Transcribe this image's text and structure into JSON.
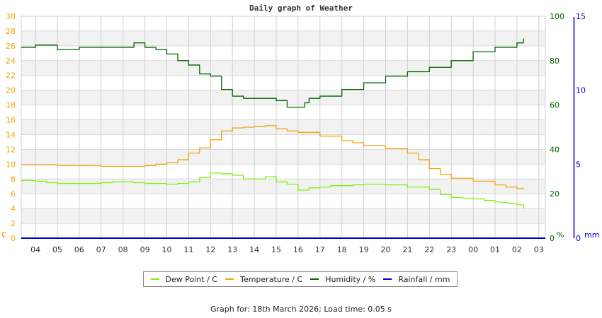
{
  "chart_data": {
    "type": "line",
    "title": "Daily graph of Weather",
    "xlabel": "",
    "x_ticks": [
      "04",
      "05",
      "06",
      "07",
      "08",
      "09",
      "10",
      "11",
      "12",
      "13",
      "14",
      "15",
      "16",
      "17",
      "18",
      "19",
      "20",
      "21",
      "22",
      "23",
      "00",
      "01",
      "02",
      "03"
    ],
    "left_axis": {
      "label": "C",
      "ticks": [
        0,
        2,
        4,
        6,
        8,
        10,
        12,
        14,
        16,
        18,
        20,
        22,
        24,
        26,
        28,
        30
      ],
      "ylim": [
        0,
        30
      ],
      "color": "#f5a30a"
    },
    "right_axis_1": {
      "label": "%",
      "ticks": [
        0,
        20,
        40,
        60,
        80,
        100
      ],
      "ylim": [
        0,
        100
      ],
      "color": "#006400"
    },
    "right_axis_2": {
      "label": "mm",
      "ticks": [
        0,
        5,
        10,
        15
      ],
      "ylim": [
        0,
        15
      ],
      "color": "#0000cc"
    },
    "grid": true,
    "legend_position": "bottom",
    "x_hours_offset_note": "x expressed as hours since 03:00 (first tick 04 = 1)",
    "series": [
      {
        "name": "Dew Point / C",
        "color": "#80ef10",
        "axis": "left",
        "x": [
          0.35,
          1,
          1.5,
          2,
          2.5,
          3,
          4,
          4.5,
          5,
          5.5,
          6,
          7,
          7.5,
          8,
          8.5,
          9,
          9.5,
          10,
          10.5,
          11,
          11.5,
          12,
          12.5,
          13,
          13.5,
          14,
          14.5,
          15,
          15.5,
          16,
          17,
          17.5,
          18,
          19,
          19.5,
          20,
          20.5,
          21,
          21.5,
          22,
          22.3,
          22.6,
          23,
          23.3
        ],
        "values": [
          7.8,
          7.7,
          7.5,
          7.4,
          7.4,
          7.4,
          7.5,
          7.6,
          7.6,
          7.5,
          7.4,
          7.3,
          7.4,
          7.6,
          8.2,
          8.8,
          8.7,
          8.5,
          8.0,
          8.0,
          8.3,
          7.6,
          7.3,
          6.5,
          6.8,
          6.9,
          7.1,
          7.1,
          7.2,
          7.3,
          7.2,
          7.2,
          6.9,
          6.6,
          5.9,
          5.5,
          5.4,
          5.3,
          5.1,
          4.9,
          4.8,
          4.7,
          4.5,
          4.0
        ]
      },
      {
        "name": "Temperature / C",
        "color": "#f5a30a",
        "axis": "left",
        "x": [
          0.35,
          1,
          2,
          3,
          4,
          5,
          5.5,
          6,
          6.5,
          7,
          7.5,
          8,
          8.5,
          9,
          9.5,
          10,
          10.5,
          11,
          11.5,
          12,
          12.5,
          13,
          14,
          15,
          15.5,
          16,
          17,
          18,
          18.5,
          19,
          19.5,
          20,
          21,
          22,
          22.5,
          23,
          23.3
        ],
        "values": [
          9.9,
          9.9,
          9.8,
          9.8,
          9.7,
          9.7,
          9.7,
          9.8,
          10.0,
          10.2,
          10.6,
          11.5,
          12.2,
          13.3,
          14.5,
          14.9,
          15.0,
          15.1,
          15.2,
          14.8,
          14.5,
          14.3,
          13.8,
          13.2,
          12.9,
          12.5,
          12.1,
          11.5,
          10.6,
          9.4,
          8.6,
          8.1,
          7.7,
          7.2,
          6.9,
          6.7,
          6.6
        ]
      },
      {
        "name": "Humidity / %",
        "color": "#006400",
        "axis": "right_1",
        "x": [
          0.35,
          1,
          2,
          3,
          4,
          5,
          5.5,
          6,
          6.5,
          7,
          7.5,
          8,
          8.5,
          9,
          9.5,
          10,
          10.5,
          11,
          11.5,
          12,
          12.5,
          13,
          13.3,
          13.5,
          14,
          15,
          16,
          17,
          18,
          19,
          20,
          21,
          22,
          23,
          23.3
        ],
        "values": [
          86,
          87,
          85,
          86,
          86,
          86,
          88,
          86,
          85,
          83,
          80,
          78,
          74,
          73,
          67,
          64,
          63,
          63,
          63,
          62,
          59,
          59,
          61,
          63,
          64,
          67,
          70,
          73,
          75,
          77,
          80,
          84,
          86,
          88,
          90
        ]
      },
      {
        "name": "Rainfall / mm",
        "color": "#0000cc",
        "axis": "right_2",
        "x": [
          0,
          23.3
        ],
        "values": [
          0,
          0
        ]
      }
    ]
  },
  "legend": [
    {
      "label": "Dew Point / C",
      "color": "#80ef10"
    },
    {
      "label": "Temperature / C",
      "color": "#f5a30a"
    },
    {
      "label": "Humidity / %",
      "color": "#006400"
    },
    {
      "label": "Rainfall / mm",
      "color": "#0000cc"
    }
  ],
  "footer": "Graph for: 18th March 2026; Load time: 0.05 s"
}
